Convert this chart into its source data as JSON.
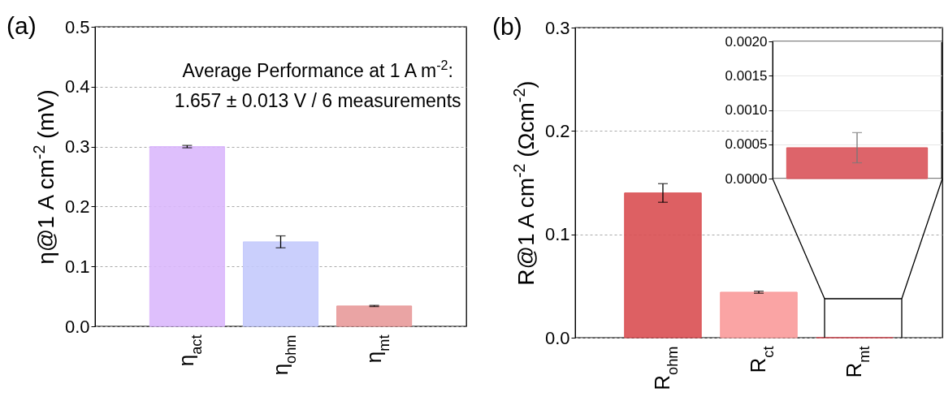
{
  "chart_data": [
    {
      "type": "bar",
      "title": "(a)",
      "ylabel": "η@1 A cm$^{-2}$ (mV)",
      "categories": [
        "η$_{act}$",
        "η$_{ohm}$",
        "η$_{mt}$"
      ],
      "values": [
        0.3,
        0.141,
        0.034
      ],
      "errors": [
        0.002,
        0.01,
        0.001
      ],
      "colors": [
        "#dab8fc",
        "#c4cafc",
        "#e89a9a"
      ],
      "ylim": [
        0,
        0.5
      ],
      "yticks": [
        {
          "value": 0,
          "label": "0.0"
        },
        0.1,
        0.2,
        0.3,
        0.4,
        0.5
      ],
      "grid": "y",
      "annotations": [
        "Average Performance at 1 A m$^{-2}$:",
        "1.657 ± 0.013 V / 6 measurements"
      ]
    },
    {
      "type": "bar",
      "title": "(b)",
      "ylabel": "R@1 A cm$^{-2}$ (Ωcm$^{-2}$)",
      "categories": [
        "R$_{ohm}$",
        "R$_{ct}$",
        "R$_{mt}$"
      ],
      "values": [
        0.14,
        0.044,
        0.0
      ],
      "errors": [
        0.009,
        0.001,
        null
      ],
      "colors": [
        "#d94f52",
        "#f99a9a",
        "#d9535a"
      ],
      "ylim": [
        0,
        0.3
      ],
      "yticks": [
        {
          "value": 0,
          "label": "0.0"
        },
        0.1,
        0.2,
        0.3
      ],
      "grid": "y"
    },
    {
      "type": "bar",
      "categories": [
        null
      ],
      "values": [
        0.00045
      ],
      "errors": [
        0.00022
      ],
      "colors": [
        "#d9535a"
      ],
      "ylim": [
        0,
        0.002
      ],
      "yticks": [
        {
          "value": 0,
          "label": "0.0000"
        },
        {
          "value": 0.0005,
          "label": "0.0005"
        },
        {
          "value": 0.001,
          "label": "0.0010"
        },
        {
          "value": 0.0015,
          "label": "0.0015"
        },
        {
          "value": 0.002,
          "label": "0.0020"
        }
      ],
      "grid": "y",
      "tick_labels": "y"
    }
  ]
}
